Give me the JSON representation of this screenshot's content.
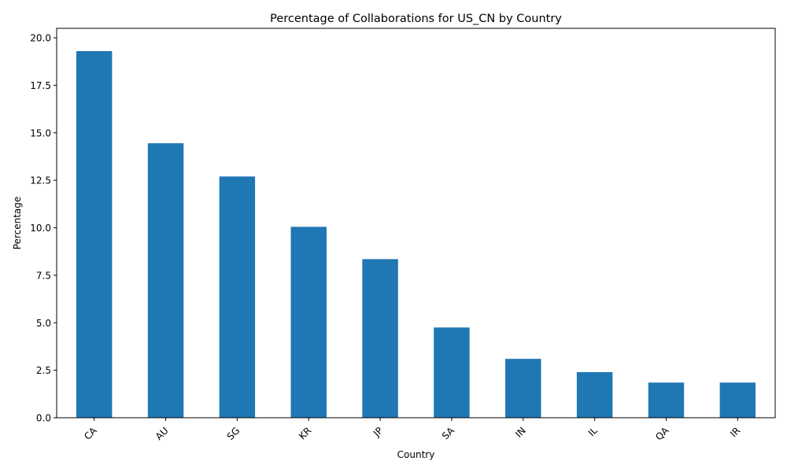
{
  "chart_data": {
    "type": "bar",
    "title": "Percentage of Collaborations for US_CN by Country",
    "xlabel": "Country",
    "ylabel": "Percentage",
    "categories": [
      "CA",
      "AU",
      "SG",
      "KR",
      "JP",
      "SA",
      "IN",
      "IL",
      "QA",
      "IR"
    ],
    "values": [
      19.3,
      14.45,
      12.7,
      10.05,
      8.35,
      4.75,
      3.1,
      2.4,
      1.85,
      1.85
    ],
    "ylim": [
      0,
      20.5
    ],
    "yticks": [
      0.0,
      2.5,
      5.0,
      7.5,
      10.0,
      12.5,
      15.0,
      17.5,
      20.0
    ],
    "ytick_labels": [
      "0.0",
      "2.5",
      "5.0",
      "7.5",
      "10.0",
      "12.5",
      "15.0",
      "17.5",
      "20.0"
    ],
    "grid": false,
    "legend": "none",
    "bar_color": "#1f77b4",
    "xtick_rotation_deg": 45
  }
}
